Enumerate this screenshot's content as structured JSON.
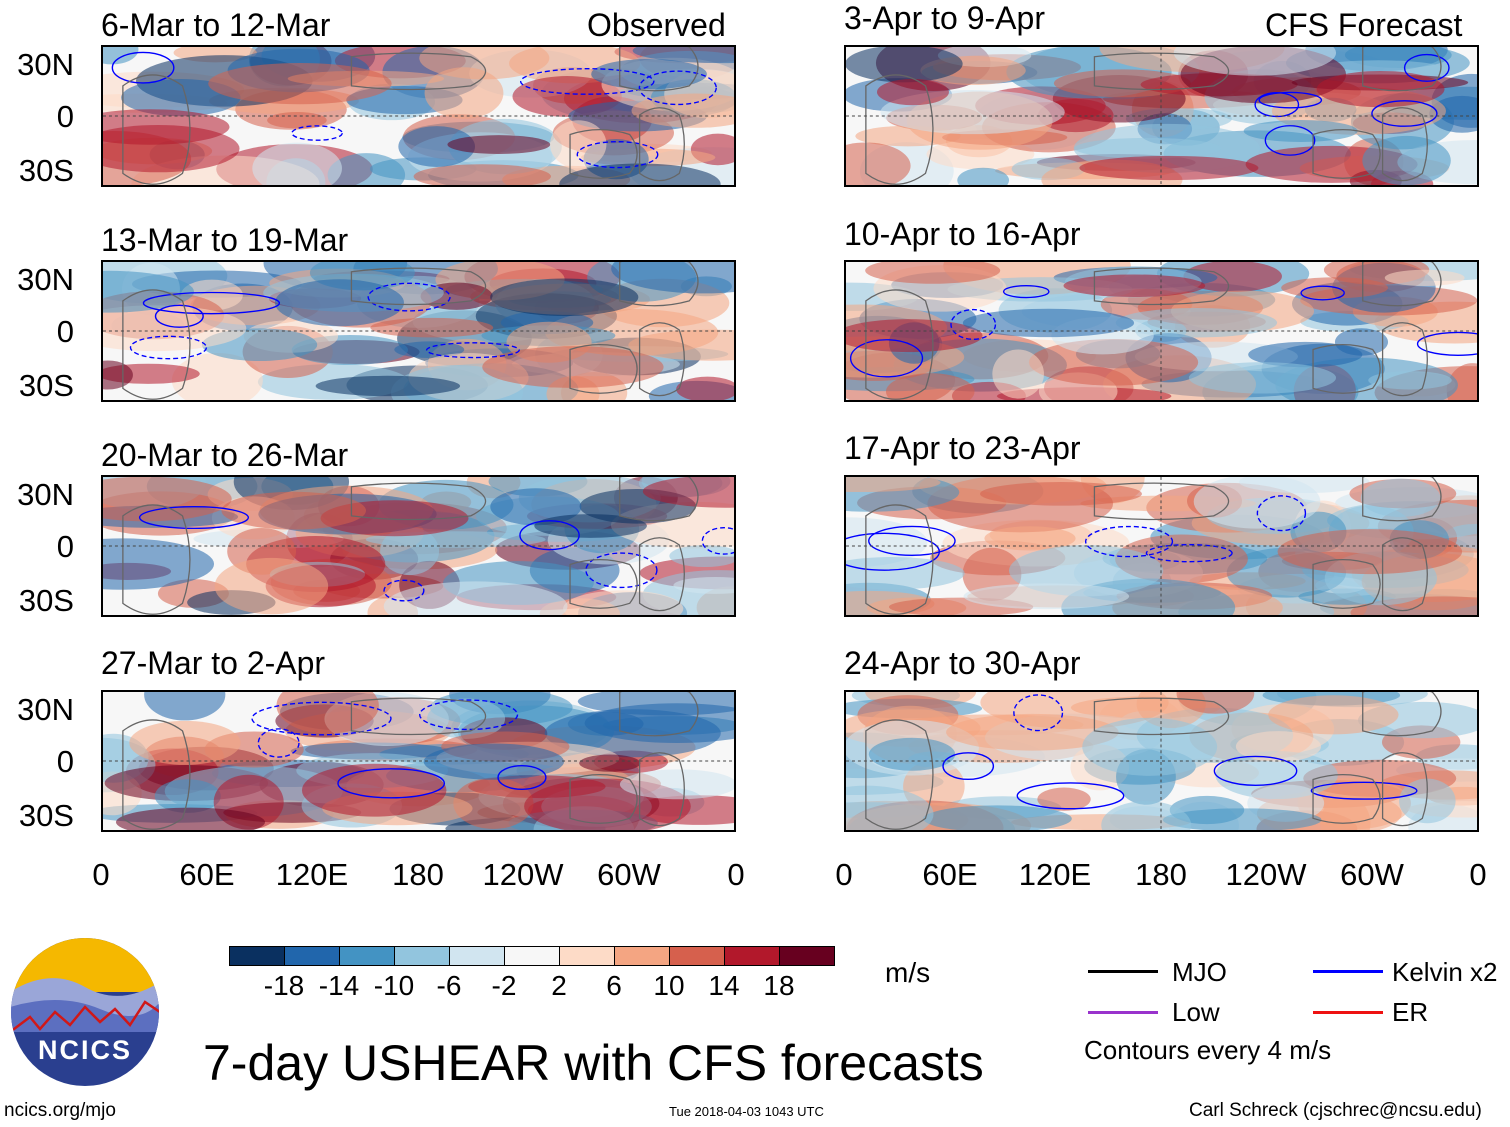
{
  "header": {
    "left_label": "Observed",
    "right_label": "CFS Forecast"
  },
  "panels": {
    "observed": [
      {
        "title": "6-Mar to 12-Mar"
      },
      {
        "title": "13-Mar to 19-Mar"
      },
      {
        "title": "20-Mar to 26-Mar"
      },
      {
        "title": "27-Mar to 2-Apr"
      }
    ],
    "forecast": [
      {
        "title": "3-Apr to 9-Apr"
      },
      {
        "title": "10-Apr to 16-Apr"
      },
      {
        "title": "17-Apr to 23-Apr"
      },
      {
        "title": "24-Apr to 30-Apr"
      }
    ]
  },
  "axes": {
    "y_ticks": [
      "30N",
      "0",
      "30S"
    ],
    "x_ticks": [
      "0",
      "60E",
      "120E",
      "180",
      "120W",
      "60W",
      "0"
    ]
  },
  "colorbar": {
    "colors": [
      "#0a3060",
      "#2166ac",
      "#4393c3",
      "#92c5de",
      "#d1e5f0",
      "#f7f7f7",
      "#fddbc7",
      "#f4a582",
      "#d6604d",
      "#b2182b",
      "#67001f"
    ],
    "labels": [
      "-18",
      "-14",
      "-10",
      "-6",
      "-2",
      "2",
      "6",
      "10",
      "14",
      "18"
    ],
    "units": "m/s"
  },
  "legend": {
    "items": [
      {
        "label": "MJO",
        "color": "#000000"
      },
      {
        "label": "Kelvin x2",
        "color": "#0000ff"
      },
      {
        "label": "Low",
        "color": "#9933cc"
      },
      {
        "label": "ER",
        "color": "#ee1111"
      }
    ],
    "note": "Contours every 4 m/s"
  },
  "footer": {
    "title": "7-day USHEAR with CFS forecasts",
    "url": "ncics.org/mjo",
    "timestamp": "Tue 2018-04-03 1043 UTC",
    "credit": "Carl Schreck (cjschrec@ncsu.edu)",
    "logo_text": "NCICS"
  }
}
